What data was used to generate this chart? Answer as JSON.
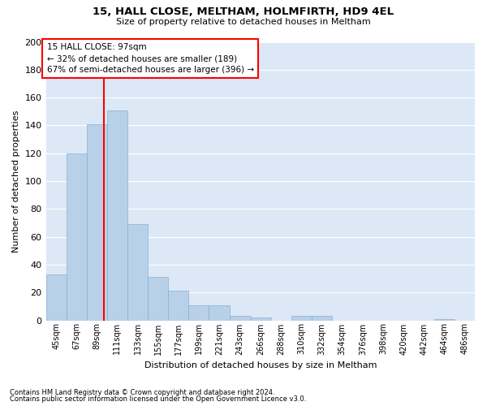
{
  "title1": "15, HALL CLOSE, MELTHAM, HOLMFIRTH, HD9 4EL",
  "title2": "Size of property relative to detached houses in Meltham",
  "xlabel": "Distribution of detached houses by size in Meltham",
  "ylabel": "Number of detached properties",
  "footer1": "Contains HM Land Registry data © Crown copyright and database right 2024.",
  "footer2": "Contains public sector information licensed under the Open Government Licence v3.0.",
  "categories": [
    "45sqm",
    "67sqm",
    "89sqm",
    "111sqm",
    "133sqm",
    "155sqm",
    "177sqm",
    "199sqm",
    "221sqm",
    "243sqm",
    "266sqm",
    "288sqm",
    "310sqm",
    "332sqm",
    "354sqm",
    "376sqm",
    "398sqm",
    "420sqm",
    "442sqm",
    "464sqm",
    "486sqm"
  ],
  "values": [
    33,
    120,
    141,
    151,
    69,
    31,
    21,
    11,
    11,
    3,
    2,
    0,
    3,
    3,
    0,
    0,
    0,
    0,
    0,
    1,
    0
  ],
  "bar_color": "#b8d0e8",
  "bar_edge_color": "#8ab0d0",
  "background_color": "#dce8f5",
  "annotation_line_color": "red",
  "annotation_text_line1": "15 HALL CLOSE: 97sqm",
  "annotation_text_line2": "← 32% of detached houses are smaller (189)",
  "annotation_text_line3": "67% of semi-detached houses are larger (396) →",
  "ylim": [
    0,
    200
  ],
  "yticks": [
    0,
    20,
    40,
    60,
    80,
    100,
    120,
    140,
    160,
    180,
    200
  ],
  "grid_color": "#ffffff",
  "bin_size": 22,
  "property_size": 97
}
